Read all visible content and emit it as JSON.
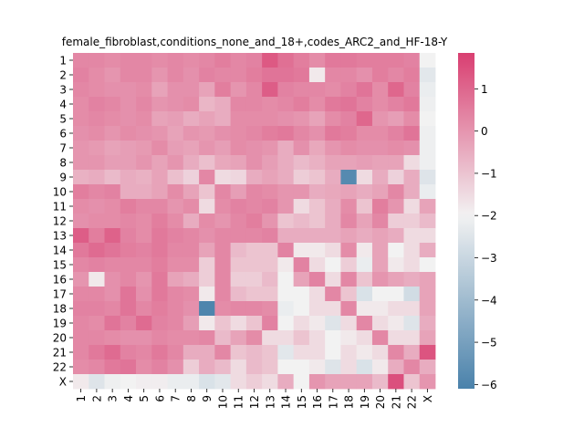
{
  "chart_data": {
    "type": "heatmap",
    "title": "female_fibroblast,conditions_none_and_18+,codes_ARC2_and_HF-18-Y",
    "xlabel": "",
    "ylabel": "",
    "row_labels": [
      "1",
      "2",
      "3",
      "4",
      "5",
      "6",
      "7",
      "8",
      "9",
      "10",
      "11",
      "12",
      "13",
      "14",
      "15",
      "16",
      "17",
      "18",
      "19",
      "20",
      "21",
      "22",
      "X"
    ],
    "col_labels": [
      "1",
      "2",
      "3",
      "4",
      "5",
      "6",
      "7",
      "8",
      "9",
      "10",
      "11",
      "12",
      "13",
      "14",
      "15",
      "16",
      "17",
      "18",
      "19",
      "20",
      "21",
      "22",
      "X"
    ],
    "colorbar": {
      "vmin": -6.1,
      "vmax": 1.85,
      "center": -2,
      "ticks": [
        1,
        0,
        -1,
        -2,
        -3,
        -4,
        -5,
        -6
      ],
      "tick_labels": [
        "1",
        "0",
        "−1",
        "−2",
        "−3",
        "−4",
        "−5",
        "−6"
      ],
      "low_color": "#4a82ab",
      "mid_color": "#f2f2f2",
      "high_color": "#d93f71"
    },
    "values": [
      [
        0.3,
        0.3,
        0.2,
        0.3,
        0.3,
        0.2,
        0.3,
        0.2,
        0.3,
        0.5,
        0.3,
        0.4,
        1.3,
        0.8,
        0.5,
        0.2,
        0.6,
        0.6,
        0.5,
        0.5,
        0.5,
        0.4,
        -2.0
      ],
      [
        0.4,
        0.2,
        0.0,
        0.3,
        0.3,
        0.0,
        0.3,
        0.1,
        0.4,
        0.3,
        0.3,
        0.5,
        0.7,
        0.7,
        0.6,
        -1.8,
        0.3,
        0.3,
        0.1,
        0.5,
        0.3,
        0.5,
        -2.4
      ],
      [
        0.3,
        0.2,
        0.1,
        0.1,
        0.2,
        -0.3,
        0.1,
        0.1,
        -0.3,
        0.5,
        0.0,
        0.3,
        1.2,
        0.4,
        0.3,
        0.3,
        0.2,
        0.4,
        0.7,
        0.2,
        1.0,
        0.4,
        -2.2
      ],
      [
        0.2,
        0.4,
        0.3,
        0.1,
        0.3,
        0.0,
        0.1,
        0.2,
        -0.7,
        -0.5,
        0.3,
        0.3,
        0.2,
        0.3,
        0.5,
        0.2,
        0.6,
        0.7,
        0.4,
        0.2,
        0.4,
        0.6,
        -2.1
      ],
      [
        0.2,
        0.3,
        0.2,
        0.1,
        0.2,
        -0.3,
        -0.2,
        -0.5,
        -0.3,
        -0.5,
        0.2,
        0.2,
        0.2,
        0.1,
        0.0,
        -0.3,
        0.2,
        0.4,
        1.0,
        0.0,
        -0.2,
        0.2,
        -2.0
      ],
      [
        0.1,
        0.2,
        0.0,
        0.2,
        0.1,
        0.0,
        -0.3,
        0.0,
        -0.1,
        0.1,
        0.2,
        0.3,
        0.5,
        0.6,
        0.3,
        0.1,
        0.6,
        0.5,
        0.2,
        0.2,
        0.4,
        0.7,
        -2.1
      ],
      [
        0.0,
        -0.1,
        -0.3,
        -0.2,
        -0.1,
        0.2,
        -0.2,
        -0.3,
        0.0,
        -0.2,
        0.2,
        0.1,
        0.0,
        -0.5,
        0.1,
        -0.4,
        0.0,
        0.2,
        0.1,
        0.1,
        0.2,
        0.1,
        -2.1
      ],
      [
        0.0,
        0.0,
        -0.2,
        -0.2,
        0.0,
        -0.3,
        0.0,
        -0.5,
        -0.9,
        -0.4,
        -0.3,
        0.1,
        -0.2,
        -0.5,
        -0.8,
        -0.6,
        -0.3,
        -0.3,
        -0.2,
        -0.3,
        -0.3,
        -1.5,
        -2.1
      ],
      [
        -0.6,
        -0.5,
        -0.8,
        -0.5,
        -0.6,
        -0.3,
        -0.9,
        -1.3,
        0.3,
        -1.5,
        -1.4,
        -0.5,
        -0.3,
        -0.5,
        -1.2,
        -1.0,
        -0.5,
        -5.8,
        -1.5,
        -0.5,
        -1.3,
        -0.5,
        -2.5
      ],
      [
        0.5,
        0.3,
        0.4,
        -0.5,
        -0.5,
        -0.3,
        0.2,
        -0.3,
        -1.0,
        0.3,
        -0.2,
        0.3,
        0.2,
        0.0,
        0.0,
        -0.5,
        -0.4,
        -0.3,
        -0.5,
        -0.3,
        0.3,
        -0.5,
        -2.2
      ],
      [
        0.2,
        0.1,
        0.2,
        0.5,
        0.3,
        0.3,
        0.0,
        0.2,
        -1.5,
        0.2,
        0.4,
        0.3,
        0.4,
        0.0,
        -1.5,
        -1.0,
        -0.5,
        0.2,
        -1.0,
        0.5,
        0.0,
        -1.5,
        -0.3
      ],
      [
        0.1,
        0.2,
        0.2,
        0.3,
        0.2,
        0.5,
        0.2,
        -0.5,
        0.2,
        0.0,
        0.3,
        0.5,
        0.0,
        -1.0,
        -0.8,
        -1.0,
        -0.5,
        0.3,
        -0.3,
        0.3,
        -1.2,
        -1.2,
        -0.8
      ],
      [
        1.2,
        0.5,
        1.1,
        0.4,
        0.2,
        0.6,
        0.4,
        0.3,
        0.1,
        0.3,
        0.3,
        0.3,
        0.4,
        -0.5,
        -0.5,
        -0.5,
        -0.5,
        -0.3,
        -0.5,
        -0.3,
        -0.5,
        -1.5,
        -1.5
      ],
      [
        0.6,
        0.9,
        0.7,
        0.5,
        0.4,
        0.6,
        0.3,
        0.3,
        -0.3,
        0.3,
        -0.8,
        -1.0,
        -1.0,
        0.4,
        -1.8,
        -1.8,
        -1.5,
        0.2,
        -1.8,
        -0.3,
        -2.0,
        -1.5,
        -0.5
      ],
      [
        0.3,
        0.4,
        0.3,
        0.3,
        0.3,
        0.5,
        0.2,
        0.2,
        -1.2,
        0.3,
        -1.0,
        -1.0,
        -1.0,
        -1.8,
        0.4,
        -1.5,
        -2.0,
        -1.2,
        -2.2,
        -0.3,
        -1.8,
        -1.5,
        -2.0
      ],
      [
        0.0,
        -1.8,
        0.1,
        0.3,
        0.0,
        0.6,
        -0.3,
        -0.5,
        -1.2,
        0.3,
        -1.2,
        -1.2,
        -0.8,
        -2.0,
        -0.3,
        0.4,
        -1.5,
        0.3,
        -1.0,
        0.0,
        -0.3,
        -0.5,
        -0.3
      ],
      [
        0.3,
        0.3,
        0.1,
        0.7,
        0.1,
        0.6,
        0.3,
        0.2,
        -1.8,
        0.3,
        -0.8,
        -1.0,
        -1.0,
        -2.0,
        -2.0,
        -1.5,
        0.3,
        -1.0,
        -2.6,
        -2.0,
        -2.0,
        -2.8,
        -0.3
      ],
      [
        0.4,
        0.4,
        0.3,
        0.7,
        0.3,
        0.5,
        0.3,
        0.1,
        -6.0,
        0.2,
        0.3,
        0.3,
        0.2,
        -2.2,
        -2.0,
        -1.5,
        -1.5,
        0.3,
        -1.8,
        -1.8,
        -1.5,
        -1.5,
        -0.3
      ],
      [
        0.3,
        0.2,
        0.7,
        0.4,
        0.9,
        0.4,
        0.3,
        -0.2,
        -1.8,
        -1.0,
        -1.5,
        -1.0,
        0.4,
        -2.0,
        -1.5,
        -1.8,
        -2.5,
        -1.5,
        0.3,
        -1.5,
        -1.8,
        -2.5,
        -0.5
      ],
      [
        0.3,
        0.3,
        0.2,
        0.1,
        0.1,
        0.3,
        0.2,
        0.2,
        0.3,
        -0.8,
        -0.3,
        0.2,
        -1.5,
        -1.5,
        -1.0,
        -1.5,
        -2.0,
        -1.8,
        -1.5,
        0.3,
        -1.5,
        -1.5,
        -0.3
      ],
      [
        0.3,
        0.6,
        0.9,
        0.4,
        0.3,
        0.6,
        0.3,
        -0.5,
        -0.5,
        0.3,
        -1.0,
        -0.8,
        -1.0,
        -2.4,
        -1.5,
        -1.5,
        -2.0,
        -1.5,
        -1.8,
        -1.5,
        0.3,
        -0.5,
        1.4
      ],
      [
        0.2,
        0.3,
        0.6,
        0.7,
        0.2,
        0.4,
        0.1,
        -1.2,
        -0.5,
        -0.8,
        -1.5,
        -0.8,
        -1.0,
        -2.0,
        -2.0,
        -1.8,
        -2.5,
        -1.5,
        -2.6,
        -1.8,
        -0.5,
        0.3,
        -0.5
      ],
      [
        -1.8,
        -2.5,
        -2.1,
        -2.0,
        -1.9,
        -1.9,
        -2.2,
        -2.2,
        -2.6,
        -2.4,
        -1.5,
        -1.2,
        -1.5,
        -0.5,
        -2.0,
        0.0,
        -0.3,
        -0.3,
        -0.3,
        -0.8,
        1.5,
        -1.0,
        0.0
      ]
    ]
  }
}
